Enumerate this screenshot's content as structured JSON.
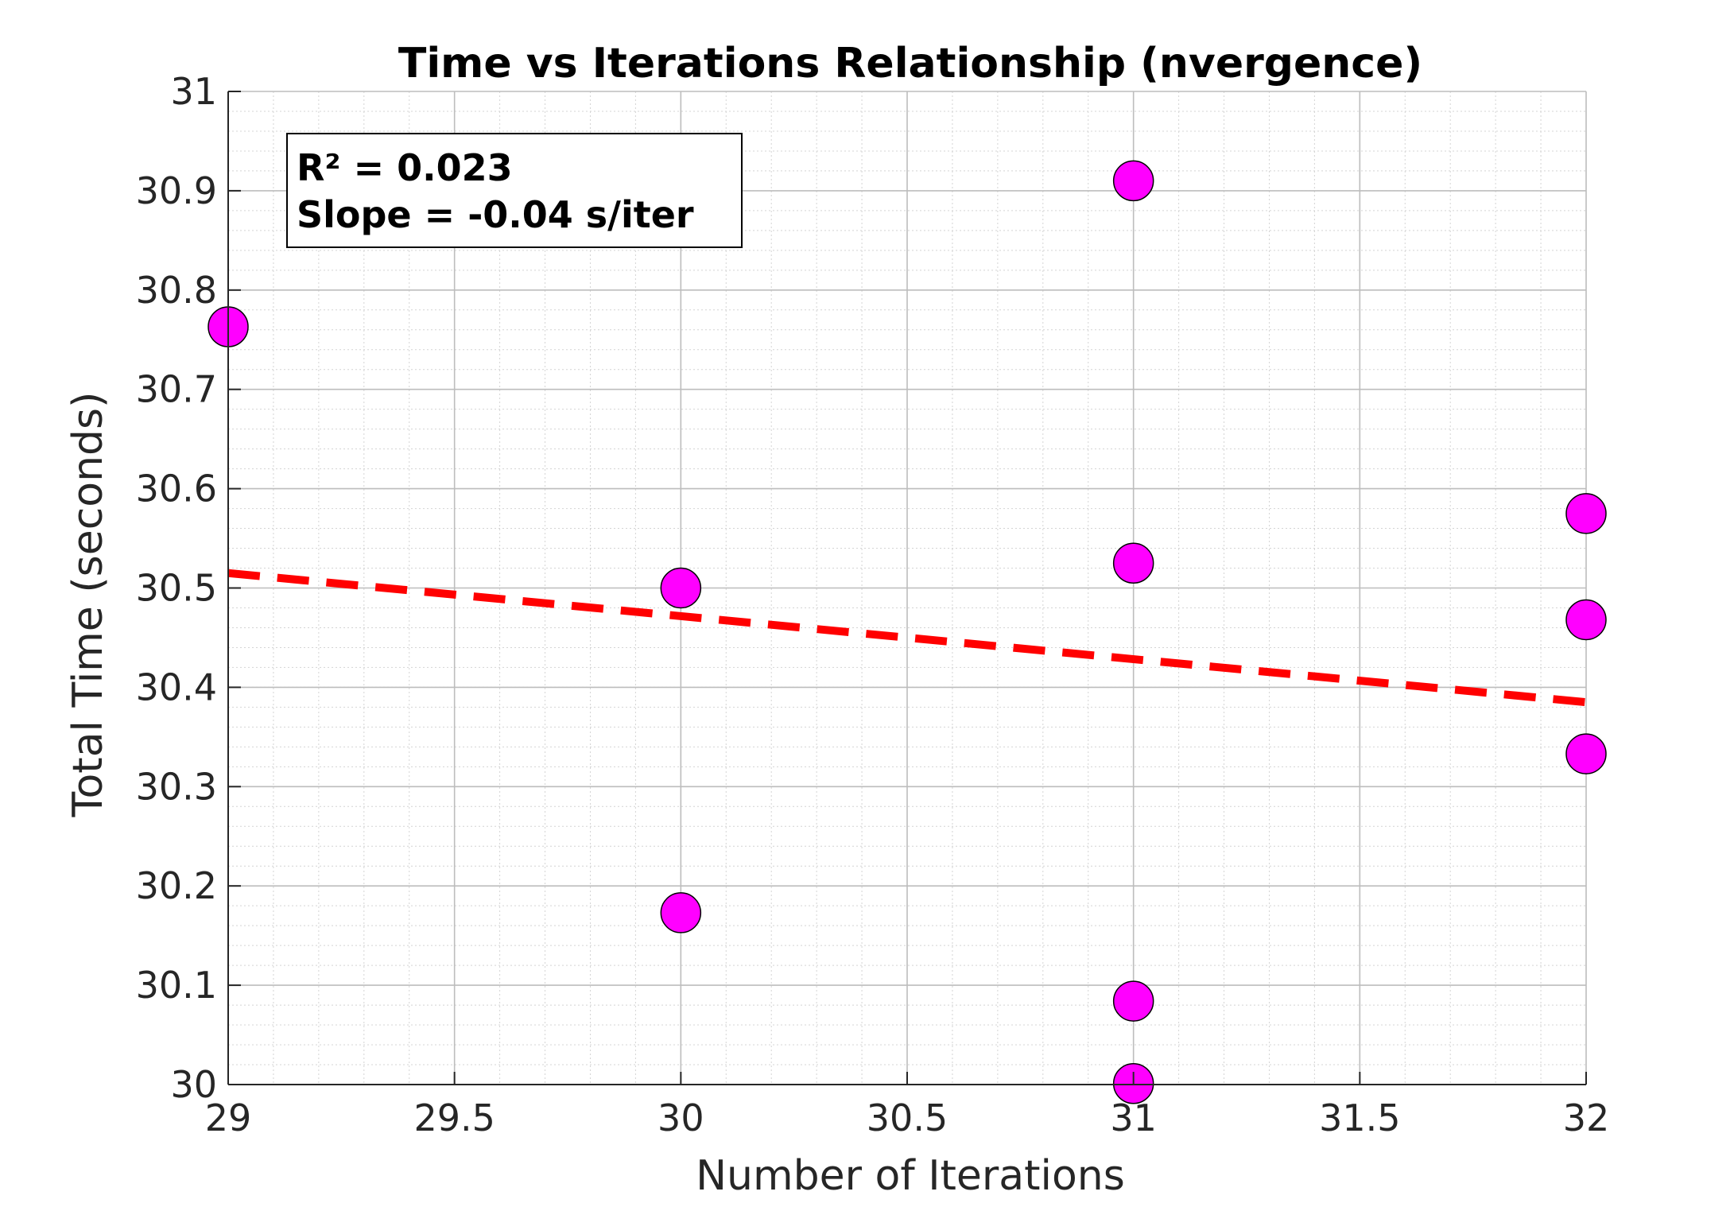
{
  "chart_data": {
    "type": "scatter",
    "title": "Time vs Iterations Relationship (nvergence)",
    "xlabel": "Number of Iterations",
    "ylabel": "Total Time (seconds)",
    "xlim": [
      29,
      32
    ],
    "ylim": [
      30,
      31
    ],
    "xticks": [
      29,
      29.5,
      30,
      30.5,
      31,
      31.5,
      32
    ],
    "xtick_labels": [
      "29",
      "29.5",
      "30",
      "30.5",
      "31",
      "31.5",
      "32"
    ],
    "yticks": [
      30,
      30.1,
      30.2,
      30.3,
      30.4,
      30.5,
      30.6,
      30.7,
      30.8,
      30.9,
      31
    ],
    "ytick_labels": [
      "30",
      "30.1",
      "30.2",
      "30.3",
      "30.4",
      "30.5",
      "30.6",
      "30.7",
      "30.8",
      "30.9",
      "31"
    ],
    "grid": true,
    "minor_grid": true,
    "series": [
      {
        "type": "scatter",
        "color": "#ff00ff",
        "edge_color": "#000000",
        "points": [
          {
            "x": 29,
            "y": 30.763
          },
          {
            "x": 30,
            "y": 30.5
          },
          {
            "x": 30,
            "y": 30.173
          },
          {
            "x": 31,
            "y": 30.91
          },
          {
            "x": 31,
            "y": 30.525
          },
          {
            "x": 31,
            "y": 30.084
          },
          {
            "x": 31,
            "y": 30.001
          },
          {
            "x": 32,
            "y": 30.575
          },
          {
            "x": 32,
            "y": 30.468
          },
          {
            "x": 32,
            "y": 30.333
          }
        ]
      },
      {
        "type": "line",
        "style": "dashed",
        "color": "#ff0000",
        "x": [
          29,
          32
        ],
        "y": [
          30.515,
          30.385
        ]
      }
    ],
    "annotation": {
      "line1": "R² = 0.023",
      "line2": "Slope = -0.04 s/iter"
    }
  }
}
